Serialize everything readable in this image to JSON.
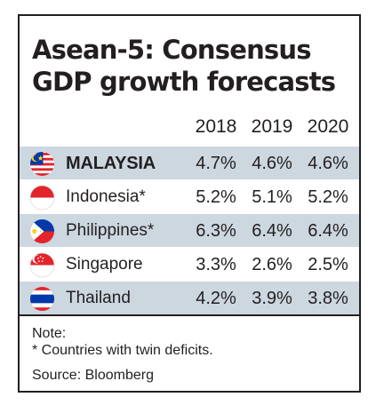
{
  "title": {
    "line1": "Asean-5: Consensus",
    "line2": "GDP growth forecasts"
  },
  "columns": [
    "2018",
    "2019",
    "2020"
  ],
  "rows": [
    {
      "country": "MALAYSIA",
      "values": [
        "4.7%",
        "4.6%",
        "4.6%"
      ],
      "flag": "malaysia-flag"
    },
    {
      "country": "Indonesia*",
      "values": [
        "5.2%",
        "5.1%",
        "5.2%"
      ],
      "flag": "indonesia-flag"
    },
    {
      "country": "Philippines*",
      "values": [
        "6.3%",
        "6.4%",
        "6.4%"
      ],
      "flag": "philippines-flag"
    },
    {
      "country": "Singapore",
      "values": [
        "3.3%",
        "2.6%",
        "2.5%"
      ],
      "flag": "singapore-flag"
    },
    {
      "country": "Thailand",
      "values": [
        "4.2%",
        "3.9%",
        "3.8%"
      ],
      "flag": "thailand-flag"
    }
  ],
  "note": {
    "heading": "Note:",
    "text": "* Countries with twin deficits."
  },
  "source": "Source: Bloomberg",
  "colors": {
    "row_shade": "#ccd7e0",
    "text": "#231f20",
    "flag_red": "#e3242b",
    "flag_blue": "#0038a8",
    "flag_yellow": "#fcd116"
  }
}
